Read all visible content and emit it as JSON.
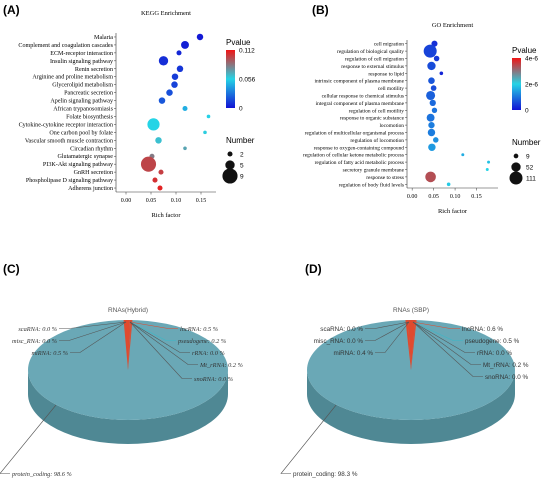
{
  "panels": {
    "a": "(A)",
    "b": "(B)",
    "c": "(C)",
    "d": "(D)"
  },
  "colors": {
    "pv_high": "#f01515",
    "pv_mid": "#25d4e6",
    "pv_low": "#1212d4",
    "pie_main": "#6aa8b6",
    "pie_side": "#4f8894",
    "pie_slice": "#e04a2e",
    "leader": "#555555",
    "leader_cyan": "#39b8c8",
    "leader_red": "#e04a2e"
  },
  "chart_data": [
    {
      "type": "scatter",
      "title": "KEGG Enrichment",
      "xlabel": "Rich factor",
      "ylabel": "",
      "xlim": [
        -0.02,
        0.18
      ],
      "xticks": [
        "0.00",
        "0.05",
        "0.10",
        "0.15"
      ],
      "xtick_values": [
        0.0,
        0.05,
        0.1,
        0.15
      ],
      "categories": [
        "Malaria",
        "Complement and coagulation cascades",
        "ECM-receptor interaction",
        "Insulin signaling pathway",
        "Renin secretion",
        "Arginine and proline metabolism",
        "Glycerolipid metabolism",
        "Pancreatic secretion",
        "Apelin signaling pathway",
        "African trypanosomiasis",
        "Folate biosynthesis",
        "Cytokine-cytokine receptor interaction",
        "One carbon pool by folate",
        "Vascular smooth muscle contraction",
        "Circadian rhythm",
        "Glutamatergic synapse",
        "PI3K-Akt signaling pathway",
        "GnRH secretion",
        "Phospholipase D signaling pathway",
        "Adherens junction"
      ],
      "rich_factor": [
        0.148,
        0.118,
        0.106,
        0.075,
        0.108,
        0.098,
        0.097,
        0.087,
        0.072,
        0.118,
        0.165,
        0.055,
        0.158,
        0.065,
        0.118,
        0.052,
        0.045,
        0.07,
        0.058,
        0.068
      ],
      "pvalue": [
        0.002,
        0.004,
        0.006,
        0.008,
        0.01,
        0.012,
        0.014,
        0.018,
        0.02,
        0.045,
        0.055,
        0.056,
        0.058,
        0.062,
        0.07,
        0.082,
        0.098,
        0.1,
        0.104,
        0.108
      ],
      "number": [
        3,
        4,
        2,
        5,
        3,
        3,
        3,
        3,
        3,
        2,
        1,
        7,
        1,
        3,
        1,
        2,
        9,
        2,
        2,
        2
      ],
      "legend": {
        "color_title": "Pvalue",
        "color_ticks": [
          "0.112",
          "0.056",
          "0"
        ],
        "color_range": [
          0,
          0.112
        ],
        "size_title": "Number",
        "size_values": [
          "2",
          "5",
          "9"
        ]
      }
    },
    {
      "type": "scatter",
      "title": "GO Enrichment",
      "xlabel": "Rich factor",
      "ylabel": "",
      "xlim": [
        -0.012,
        0.2
      ],
      "xticks": [
        "0.00",
        "0.05",
        "0.10",
        "0.15"
      ],
      "xtick_values": [
        0.0,
        0.05,
        0.1,
        0.15
      ],
      "categories": [
        "cell migration",
        "regulation of biological quality",
        "regulation of cell migration",
        "response to external stimulus",
        "response to lipid",
        "intrinsic component of plasma membrane",
        "cell motility",
        "cellular response to chemical stimulus",
        "integral component of plasma membrane",
        "regulation of cell motility",
        "response to organic substance",
        "locomotion",
        "regulation of multicellular organismal process",
        "regulation of locomotion",
        "response to oxygen-containing compound",
        "regulation of cellular ketone metabolic process",
        "regulation of fatty acid metabolic process",
        "secretory granule membrane",
        "response to stress",
        "regulation of body fluid levels"
      ],
      "rich_factor": [
        0.052,
        0.042,
        0.057,
        0.045,
        0.068,
        0.045,
        0.05,
        0.043,
        0.048,
        0.052,
        0.043,
        0.045,
        0.045,
        0.055,
        0.046,
        0.118,
        0.178,
        0.175,
        0.043,
        0.085
      ],
      "pvalue_e6": [
        0.3,
        0.5,
        0.4,
        0.6,
        0.2,
        0.7,
        0.6,
        0.8,
        0.9,
        1.0,
        1.0,
        1.1,
        1.1,
        1.3,
        1.4,
        1.6,
        1.8,
        2.0,
        3.4,
        1.9
      ],
      "number": [
        18,
        111,
        14,
        40,
        4,
        22,
        15,
        48,
        20,
        13,
        35,
        20,
        30,
        14,
        30,
        2,
        2,
        2,
        70,
        4
      ],
      "legend": {
        "color_title": "Pvalue",
        "color_ticks": [
          "4e-6",
          "2e-6",
          "0"
        ],
        "color_range": [
          0,
          4
        ],
        "size_title": "Number",
        "size_values": [
          "9",
          "52",
          "111"
        ]
      }
    },
    {
      "type": "pie",
      "title": "RNAs(Hybrid)",
      "labels": [
        "scaRNA",
        "misc_RNA",
        "miRNA",
        "lncRNA",
        "pseudogene",
        "rRNA",
        "Mt_rRNA",
        "snoRNA",
        "protein_coding"
      ],
      "display": [
        "scaRNA: 0.0 %",
        "misc_RNA: 0.0 %",
        "miRNA: 0.5 %",
        "lncRNA: 0.5 %",
        "pseudogene: 0.2 %",
        "rRNA: 0.0 %",
        "Mt_rRNA: 0.2 %",
        "snoRNA: 0.0 %",
        "protein_coding: 98.6 %"
      ],
      "values": [
        0.0,
        0.0,
        0.5,
        0.5,
        0.2,
        0.0,
        0.2,
        0.0,
        98.6
      ]
    },
    {
      "type": "pie",
      "title": "RNAs (SBP)",
      "labels": [
        "scaRNA",
        "misc_RNA",
        "miRNA",
        "lncRNA",
        "pseudogene",
        "rRNA",
        "Mt_rRNA",
        "snoRNA",
        "protein_coding"
      ],
      "display": [
        "scaRNA: 0.0 %",
        "misc_RNA: 0.0 %",
        "miRNA: 0.4 %",
        "lncRNA: 0.6 %",
        "pseudogene: 0.5 %",
        "rRNA: 0.0 %",
        "Mt_rRNA: 0.2 %",
        "snoRNA: 0.0 %",
        "protein_coding: 98.3 %"
      ],
      "values": [
        0.0,
        0.0,
        0.4,
        0.6,
        0.5,
        0.0,
        0.2,
        0.0,
        98.3
      ]
    }
  ]
}
